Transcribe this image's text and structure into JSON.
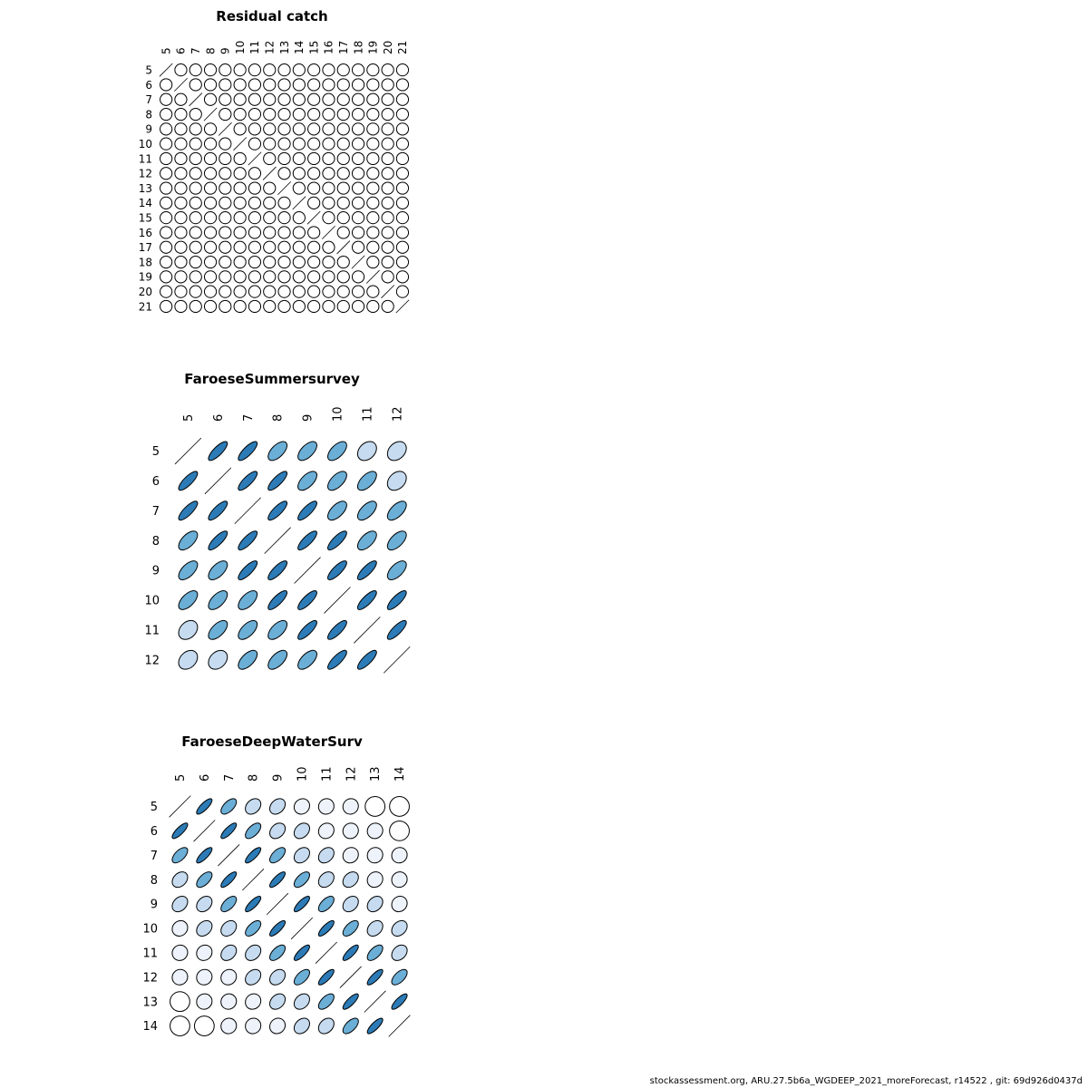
{
  "footer": "stockassessment.org, ARU.27.5b6a_WGDEEP_2021_moreForecast, r14522 , git: 69d926d0437d",
  "colors": {
    "strong": "#2c7bb6",
    "medium": "#6baed6",
    "light": "#c6dbef",
    "faint": "#eef3fb",
    "none": "#ffffff",
    "stroke": "#000000"
  },
  "chart_data": [
    {
      "type": "heatmap",
      "title": "Residual catch",
      "categories": [
        "5",
        "6",
        "7",
        "8",
        "9",
        "10",
        "11",
        "12",
        "13",
        "14",
        "15",
        "16",
        "17",
        "18",
        "19",
        "20",
        "21"
      ],
      "correlation_default": 0.0
    },
    {
      "type": "heatmap",
      "title": "FaroeseSummersurvey",
      "categories": [
        "5",
        "6",
        "7",
        "8",
        "9",
        "10",
        "11",
        "12"
      ],
      "correlation_matrix": [
        [
          1.0,
          0.8,
          0.8,
          0.6,
          0.6,
          0.6,
          0.3,
          0.3
        ],
        [
          0.8,
          1.0,
          0.8,
          0.8,
          0.6,
          0.6,
          0.6,
          0.3
        ],
        [
          0.8,
          0.8,
          1.0,
          0.8,
          0.8,
          0.6,
          0.6,
          0.6
        ],
        [
          0.6,
          0.8,
          0.8,
          1.0,
          0.8,
          0.8,
          0.6,
          0.6
        ],
        [
          0.6,
          0.6,
          0.8,
          0.8,
          1.0,
          0.8,
          0.8,
          0.6
        ],
        [
          0.6,
          0.6,
          0.6,
          0.8,
          0.8,
          1.0,
          0.8,
          0.8
        ],
        [
          0.3,
          0.6,
          0.6,
          0.6,
          0.8,
          0.8,
          1.0,
          0.8
        ],
        [
          0.3,
          0.3,
          0.6,
          0.6,
          0.6,
          0.8,
          0.8,
          1.0
        ]
      ]
    },
    {
      "type": "heatmap",
      "title": "FaroeseDeepWaterSurv",
      "categories": [
        "5",
        "6",
        "7",
        "8",
        "9",
        "10",
        "11",
        "12",
        "13",
        "14"
      ],
      "correlation_matrix": [
        [
          1.0,
          0.8,
          0.6,
          0.3,
          0.3,
          0.1,
          0.05,
          0.05,
          0.0,
          0.0
        ],
        [
          0.8,
          1.0,
          0.8,
          0.6,
          0.3,
          0.3,
          0.1,
          0.05,
          0.05,
          0.0
        ],
        [
          0.6,
          0.8,
          1.0,
          0.8,
          0.6,
          0.3,
          0.3,
          0.1,
          0.05,
          0.05
        ],
        [
          0.3,
          0.6,
          0.8,
          1.0,
          0.8,
          0.6,
          0.3,
          0.3,
          0.1,
          0.05
        ],
        [
          0.3,
          0.3,
          0.6,
          0.8,
          1.0,
          0.8,
          0.6,
          0.3,
          0.3,
          0.1
        ],
        [
          0.1,
          0.3,
          0.3,
          0.6,
          0.8,
          1.0,
          0.8,
          0.6,
          0.3,
          0.3
        ],
        [
          0.05,
          0.1,
          0.3,
          0.3,
          0.6,
          0.8,
          1.0,
          0.8,
          0.6,
          0.3
        ],
        [
          0.05,
          0.05,
          0.1,
          0.3,
          0.3,
          0.6,
          0.8,
          1.0,
          0.8,
          0.6
        ],
        [
          0.0,
          0.05,
          0.05,
          0.1,
          0.3,
          0.3,
          0.6,
          0.8,
          1.0,
          0.8
        ],
        [
          0.0,
          0.0,
          0.05,
          0.05,
          0.1,
          0.3,
          0.3,
          0.6,
          0.8,
          1.0
        ]
      ]
    }
  ]
}
